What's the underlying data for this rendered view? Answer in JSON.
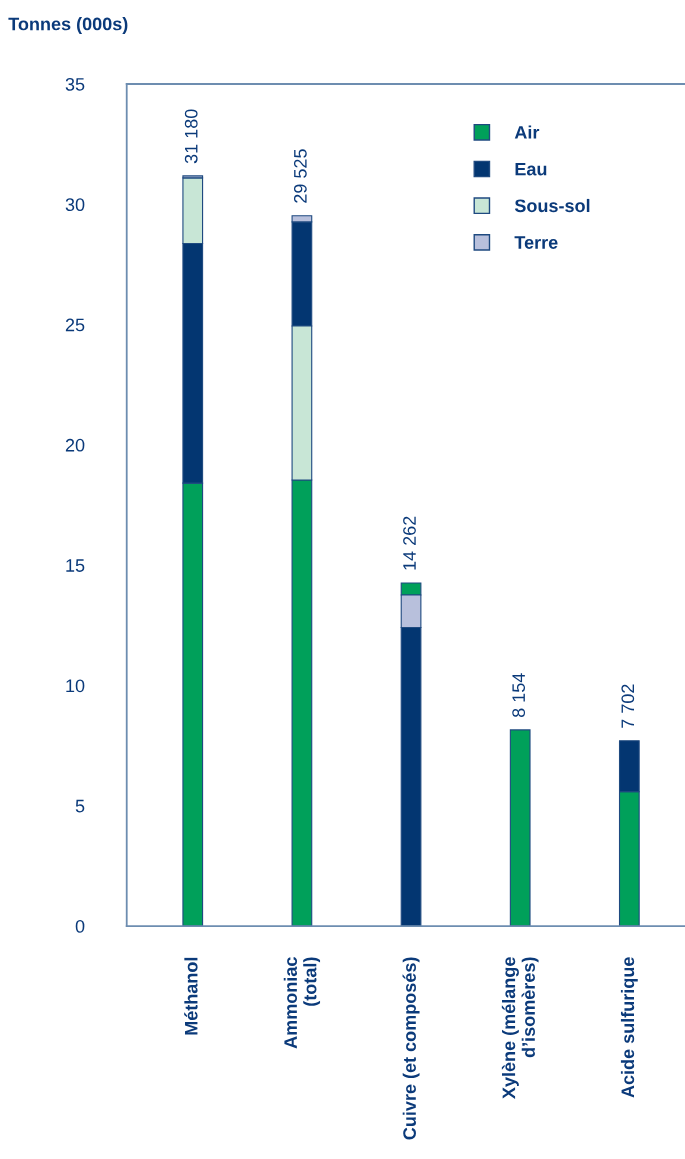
{
  "chart_data": {
    "type": "bar",
    "ylabel": "Tonnes (000s)",
    "categories": [
      "Méthanol",
      "Ammoniac\n(total)",
      "Cuivre (et composés)",
      "Xylène (mélange\nd’isomères)",
      "Acide sulfurique"
    ],
    "series": [
      {
        "name": "Air",
        "color": "#00a05a",
        "values": [
          18.41,
          18.54,
          0.5,
          8.154,
          5.58
        ],
        "base": [
          0,
          0,
          13.76,
          0,
          0
        ]
      },
      {
        "name": "Eau",
        "color": "#033671",
        "values": [
          9.96,
          4.33,
          12.41,
          null,
          2.12
        ],
        "base": [
          18.41,
          24.94,
          0,
          null,
          5.58
        ]
      },
      {
        "name": "Sous-sol",
        "color": "#c8e6d6",
        "values": [
          2.73,
          6.4,
          null,
          null,
          null
        ],
        "base": [
          28.37,
          18.54,
          null,
          null,
          null
        ]
      },
      {
        "name": "Terre",
        "color": "#b8c0dc",
        "values": [
          0.08,
          0.255,
          1.35,
          null,
          null
        ],
        "base": [
          31.1,
          29.27,
          12.41,
          null,
          null
        ]
      }
    ],
    "totals": [
      "31 180",
      "29 525",
      "14 262",
      "8 154",
      "7 702"
    ],
    "ylim": [
      0,
      35
    ],
    "yticks": [
      0,
      5,
      10,
      15,
      20,
      25,
      30,
      35
    ],
    "grid": false,
    "legend": "top right"
  }
}
